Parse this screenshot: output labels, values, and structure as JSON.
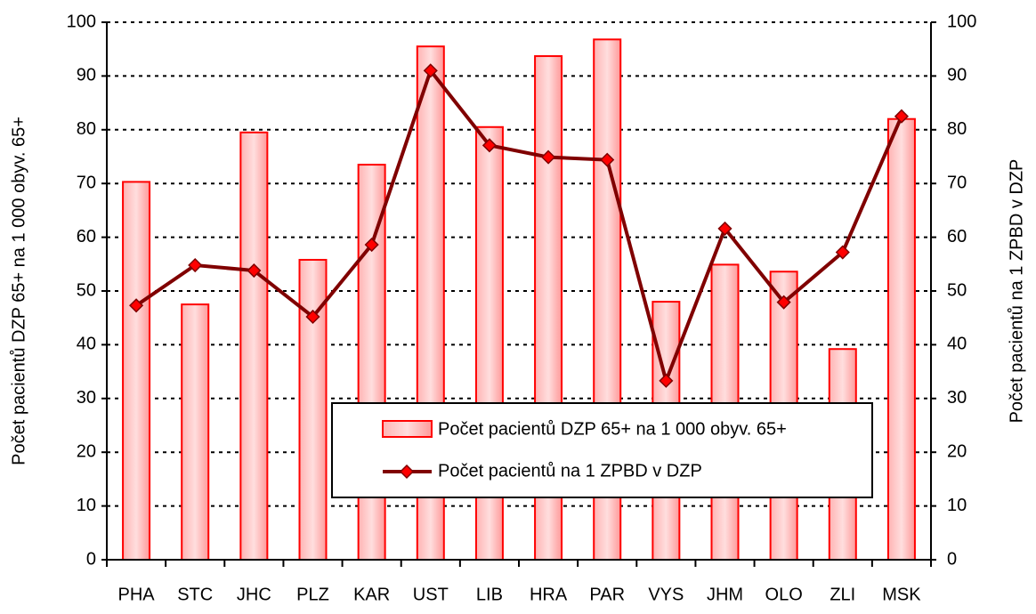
{
  "chart_data": {
    "type": "bar-line",
    "categories": [
      "PHA",
      "STC",
      "JHC",
      "PLZ",
      "KAR",
      "UST",
      "LIB",
      "HRA",
      "PAR",
      "VYS",
      "JHM",
      "OLO",
      "ZLI",
      "MSK"
    ],
    "y_label": "Počet pacientů DZP 65+ na 1 000 obyv. 65+",
    "y2_label": "Počet pacientů na 1 ZPBD v DZP",
    "series": [
      {
        "name": "Počet pacientů DZP 65+ na 1 000 obyv. 65+",
        "type": "bar",
        "color": "#ff9999",
        "values": [
          70.3,
          47.5,
          79.5,
          55.8,
          73.5,
          95.5,
          80.5,
          93.7,
          96.8,
          48,
          54.9,
          53.6,
          39.2,
          82
        ]
      },
      {
        "name": "Počet pacientů na 1 ZPBD v DZP",
        "type": "line",
        "axis": "y2",
        "color": "#800000",
        "values": [
          47.3,
          54.8,
          53.8,
          45.2,
          58.6,
          91,
          77.1,
          74.9,
          74.4,
          33.3,
          61.6,
          47.9,
          57.2,
          82.5
        ]
      }
    ],
    "ylim": [
      0,
      100
    ],
    "yticks": [
      0,
      10,
      20,
      30,
      40,
      50,
      60,
      70,
      80,
      90,
      100
    ],
    "y2lim": [
      0,
      100
    ],
    "y2ticks": [
      0,
      10,
      20,
      30,
      40,
      50,
      60,
      70,
      80,
      90,
      100
    ],
    "grid": true
  }
}
